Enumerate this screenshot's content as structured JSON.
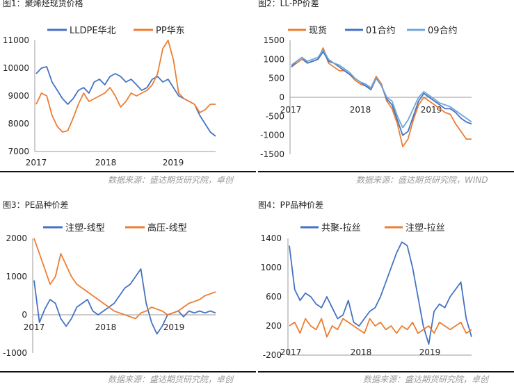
{
  "chart_data": [
    {
      "type": "line",
      "title": "图1：聚烯烃现货价格",
      "source": "数据来源：盛达期货研究院，卓创",
      "x_ticks": [
        "2017",
        "2018",
        "2019"
      ],
      "y_ticks": [
        11000,
        10000,
        9000,
        8000,
        7000
      ],
      "ylim": [
        7000,
        11000
      ],
      "legend": "top",
      "series": [
        {
          "name": "LLDPE华北",
          "color": "#4472c4",
          "values": [
            9800,
            10000,
            10050,
            9500,
            9200,
            8900,
            8700,
            8900,
            9200,
            9300,
            9100,
            9500,
            9600,
            9400,
            9700,
            9800,
            9700,
            9500,
            9600,
            9400,
            9200,
            9300,
            9600,
            9700,
            9500,
            9600,
            9300,
            9000,
            8900,
            8800,
            8700,
            8300,
            8000,
            7700,
            7550
          ]
        },
        {
          "name": "PP华东",
          "color": "#ed7d31",
          "values": [
            8700,
            9100,
            9000,
            8300,
            7900,
            7700,
            7750,
            8200,
            8700,
            9100,
            8800,
            8900,
            9000,
            9100,
            9300,
            9000,
            8600,
            8800,
            9100,
            9000,
            9100,
            9200,
            9400,
            9800,
            10700,
            11000,
            10300,
            9100,
            8900,
            8800,
            8700,
            8400,
            8500,
            8700,
            8700
          ]
        }
      ]
    },
    {
      "type": "line",
      "title": "图2：LL-PP价差",
      "source": "数据来源：盛达期货研究院，WIND",
      "x_ticks": [
        "2017",
        "2018",
        "2019"
      ],
      "y_ticks": [
        1500,
        1000,
        500,
        0,
        -500,
        -1000,
        -1500
      ],
      "ylim": [
        -1500,
        1500
      ],
      "legend": "top",
      "series": [
        {
          "name": "现货",
          "color": "#ed7d31",
          "values": [
            800,
            900,
            1000,
            900,
            950,
            1000,
            1300,
            900,
            800,
            700,
            700,
            600,
            450,
            350,
            300,
            250,
            550,
            350,
            -100,
            -300,
            -700,
            -1300,
            -1100,
            -600,
            -200,
            0,
            -100,
            -200,
            -300,
            -400,
            -450,
            -700,
            -900,
            -1100,
            -1100
          ]
        },
        {
          "name": "01合约",
          "color": "#4472c4",
          "values": [
            800,
            950,
            1050,
            900,
            950,
            1000,
            1200,
            950,
            900,
            800,
            700,
            600,
            500,
            400,
            300,
            200,
            500,
            300,
            -50,
            -200,
            -600,
            -1000,
            -900,
            -500,
            -100,
            100,
            0,
            -100,
            -200,
            -300,
            -300,
            -400,
            -550,
            -650,
            -700
          ]
        },
        {
          "name": "09合约",
          "color": "#6fa6d8",
          "values": [
            850,
            950,
            1050,
            950,
            1000,
            1050,
            1250,
            1000,
            900,
            850,
            750,
            650,
            500,
            400,
            350,
            250,
            500,
            300,
            0,
            -100,
            -500,
            -800,
            -600,
            -300,
            0,
            150,
            50,
            -50,
            -150,
            -200,
            -250,
            -350,
            -450,
            -550,
            -650
          ]
        }
      ]
    },
    {
      "type": "line",
      "title": "图3：PE品种价差",
      "source": "数据来源：盛达期货研究院，卓创",
      "x_ticks": [
        "2017",
        "2018",
        "2019"
      ],
      "y_ticks": [
        2000,
        1000,
        0,
        -1000
      ],
      "ylim": [
        -1000,
        2000
      ],
      "legend": "top",
      "series": [
        {
          "name": "注塑-线型",
          "color": "#4472c4",
          "values": [
            900,
            -200,
            150,
            400,
            300,
            -100,
            -300,
            -100,
            200,
            300,
            400,
            100,
            0,
            100,
            200,
            300,
            500,
            700,
            800,
            1000,
            1200,
            300,
            -200,
            -500,
            -300,
            0,
            50,
            100,
            -50,
            100,
            50,
            100,
            50,
            100,
            50
          ]
        },
        {
          "name": "高压-线型",
          "color": "#ed7d31",
          "values": [
            2000,
            1600,
            1200,
            800,
            1000,
            1600,
            1300,
            1000,
            800,
            700,
            600,
            500,
            400,
            300,
            200,
            100,
            50,
            0,
            -50,
            -100,
            50,
            100,
            200,
            150,
            100,
            0,
            50,
            100,
            200,
            300,
            350,
            400,
            500,
            550,
            600
          ]
        }
      ]
    },
    {
      "type": "line",
      "title": "图4：PP品种价差",
      "source": "数据来源：盛达期货研究院，卓创",
      "x_ticks": [
        "2017",
        "2018",
        "2019"
      ],
      "y_ticks": [
        1400,
        1000,
        600,
        200,
        -200
      ],
      "ylim": [
        -200,
        1400
      ],
      "legend": "top",
      "series": [
        {
          "name": "共聚-拉丝",
          "color": "#4472c4",
          "values": [
            1300,
            700,
            550,
            650,
            600,
            500,
            450,
            600,
            450,
            300,
            350,
            550,
            250,
            200,
            300,
            400,
            450,
            600,
            800,
            1000,
            1200,
            1350,
            1300,
            1000,
            600,
            200,
            -50,
            400,
            500,
            450,
            600,
            700,
            800,
            300,
            50
          ]
        },
        {
          "name": "注塑-拉丝",
          "color": "#ed7d31",
          "values": [
            200,
            250,
            100,
            300,
            200,
            150,
            300,
            50,
            200,
            150,
            300,
            250,
            200,
            150,
            100,
            300,
            200,
            250,
            150,
            200,
            100,
            200,
            150,
            250,
            100,
            150,
            200,
            100,
            250,
            200,
            150,
            200,
            250,
            100,
            150
          ]
        }
      ]
    }
  ]
}
